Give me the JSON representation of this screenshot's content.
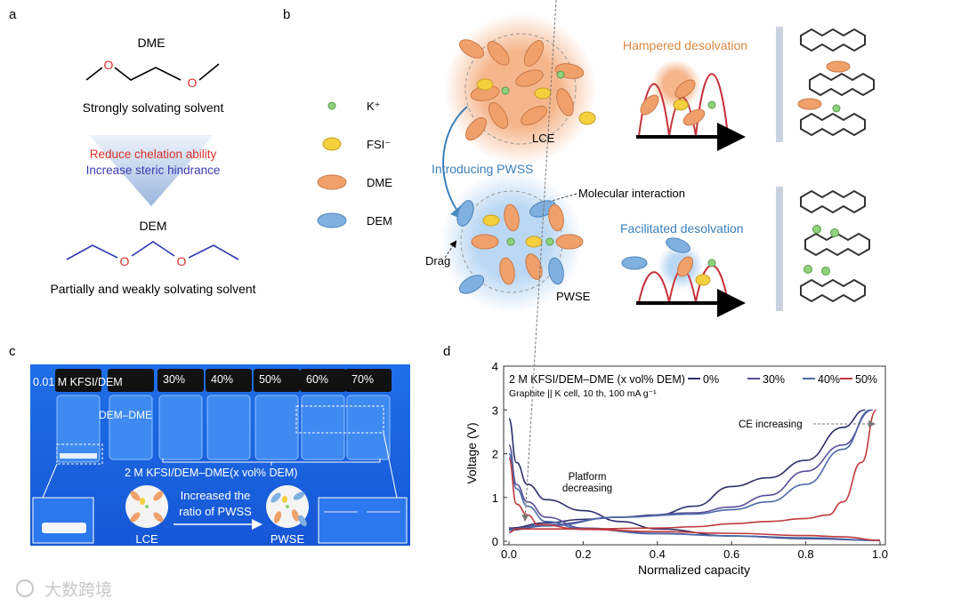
{
  "panel_labels": {
    "a": "a",
    "b": "b",
    "c": "c",
    "d": "d"
  },
  "panel_a": {
    "dme": "DME",
    "dme_desc": "Strongly solvating solvent",
    "reduce": "Reduce chelation ability",
    "increase": "Increase steric hindrance",
    "dem": "DEM",
    "dem_desc": "Partially and weakly solvating solvent",
    "oxygen": "O"
  },
  "panel_b": {
    "legend": [
      {
        "label": "K⁺",
        "color": "#8fd27a"
      },
      {
        "label": "FSI⁻",
        "color": "#f4d03f"
      },
      {
        "label": "DME",
        "color": "#f0a06a"
      },
      {
        "label": "DEM",
        "color": "#7fb0e0"
      }
    ],
    "lce": "LCE",
    "pwse": "PWSE",
    "hampered": "Hampered desolvation",
    "facilitated": "Facilitated desolvation",
    "introducing": "Introducing PWSS",
    "molecular": "Molecular interaction",
    "drag": "Drag"
  },
  "panel_c": {
    "vial_labels": [
      "0.01 M KFSI/DEM",
      "30%",
      "40%",
      "50%",
      "60%",
      "70%"
    ],
    "dem_dme": "DEM–DME",
    "series_label": "2 M KFSI/DEM–DME(x vol% DEM)",
    "increased_1": "Increased the",
    "increased_2": "ratio of PWSS",
    "lce": "LCE",
    "pwse": "PWSE"
  },
  "watermark": "大数跨境",
  "chart_data": {
    "type": "line",
    "title": "2 M KFSI/DEM–DME (x vol% DEM)",
    "subtitle": "Graphite || K cell, 10 th, 100 mA g⁻¹",
    "xlabel": "Normalized capacity",
    "ylabel": "Voltage (V)",
    "xlim": [
      0,
      1.0
    ],
    "ylim": [
      0,
      4
    ],
    "xticks": [
      "0.0",
      "0.2",
      "0.4",
      "0.6",
      "0.8",
      "1.0"
    ],
    "yticks": [
      "0",
      "1",
      "2",
      "3",
      "4"
    ],
    "legend_placement": "top",
    "annotations": [
      "Platform",
      "decreasing",
      "CE increasing"
    ],
    "series": [
      {
        "name": "0%",
        "color": "#2c2f6b",
        "discharge": [
          [
            0,
            2.8
          ],
          [
            0.02,
            1.8
          ],
          [
            0.05,
            1.3
          ],
          [
            0.1,
            0.95
          ],
          [
            0.2,
            0.7
          ],
          [
            0.3,
            0.45
          ],
          [
            0.4,
            0.28
          ],
          [
            0.6,
            0.12
          ],
          [
            0.8,
            0.06
          ],
          [
            1.0,
            0.02
          ]
        ],
        "charge": [
          [
            0,
            0.3
          ],
          [
            0.1,
            0.42
          ],
          [
            0.2,
            0.5
          ],
          [
            0.3,
            0.55
          ],
          [
            0.4,
            0.6
          ],
          [
            0.5,
            0.8
          ],
          [
            0.6,
            1.25
          ],
          [
            0.7,
            1.45
          ],
          [
            0.8,
            1.85
          ],
          [
            0.9,
            2.6
          ],
          [
            0.96,
            3.0
          ]
        ]
      },
      {
        "name": "30%",
        "color": "#5a4f9a",
        "discharge": [
          [
            0,
            2.2
          ],
          [
            0.02,
            1.3
          ],
          [
            0.05,
            0.9
          ],
          [
            0.1,
            0.55
          ],
          [
            0.2,
            0.3
          ],
          [
            0.4,
            0.18
          ],
          [
            0.6,
            0.12
          ],
          [
            0.8,
            0.07
          ],
          [
            1.0,
            0.02
          ]
        ],
        "charge": [
          [
            0,
            0.28
          ],
          [
            0.1,
            0.38
          ],
          [
            0.3,
            0.55
          ],
          [
            0.5,
            0.65
          ],
          [
            0.6,
            0.78
          ],
          [
            0.7,
            1.05
          ],
          [
            0.8,
            1.6
          ],
          [
            0.9,
            2.2
          ],
          [
            0.98,
            3.0
          ]
        ]
      },
      {
        "name": "40%",
        "color": "#4a6aa8",
        "discharge": [
          [
            0,
            2.0
          ],
          [
            0.02,
            1.2
          ],
          [
            0.05,
            0.8
          ],
          [
            0.1,
            0.45
          ],
          [
            0.2,
            0.28
          ],
          [
            0.4,
            0.17
          ],
          [
            0.6,
            0.12
          ],
          [
            0.8,
            0.08
          ],
          [
            1.0,
            0.02
          ]
        ],
        "charge": [
          [
            0,
            0.25
          ],
          [
            0.1,
            0.35
          ],
          [
            0.3,
            0.55
          ],
          [
            0.5,
            0.62
          ],
          [
            0.6,
            0.72
          ],
          [
            0.7,
            0.9
          ],
          [
            0.8,
            1.3
          ],
          [
            0.9,
            2.1
          ],
          [
            0.975,
            3.0
          ]
        ]
      },
      {
        "name": "50%",
        "color": "#c0393b",
        "discharge": [
          [
            0,
            1.9
          ],
          [
            0.02,
            0.85
          ],
          [
            0.05,
            0.6
          ],
          [
            0.08,
            0.38
          ],
          [
            0.2,
            0.27
          ],
          [
            0.4,
            0.22
          ],
          [
            0.6,
            0.18
          ],
          [
            0.8,
            0.13
          ],
          [
            0.9,
            0.1
          ],
          [
            1.0,
            0.02
          ]
        ],
        "charge": [
          [
            0,
            0.2
          ],
          [
            0.02,
            0.28
          ],
          [
            0.2,
            0.28
          ],
          [
            0.4,
            0.3
          ],
          [
            0.5,
            0.33
          ],
          [
            0.6,
            0.4
          ],
          [
            0.7,
            0.45
          ],
          [
            0.8,
            0.52
          ],
          [
            0.86,
            0.6
          ],
          [
            0.9,
            0.9
          ],
          [
            0.95,
            1.8
          ],
          [
            0.99,
            3.0
          ]
        ]
      }
    ]
  }
}
